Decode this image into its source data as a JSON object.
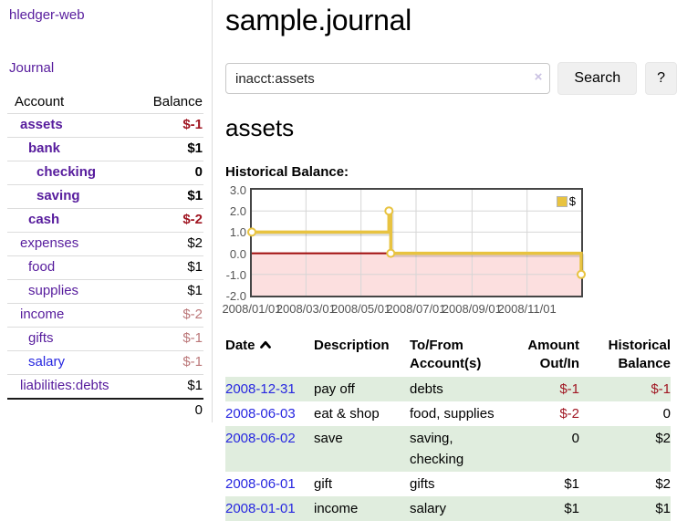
{
  "sidebar": {
    "brand": "hledger-web",
    "journal_label": "Journal",
    "accounts_table": {
      "headers": {
        "account": "Account",
        "balance": "Balance"
      },
      "rows": [
        {
          "name": "assets",
          "depth": 1,
          "bold": true,
          "link": "purple",
          "balance": "$-1",
          "balance_class": "neg"
        },
        {
          "name": "bank",
          "depth": 2,
          "bold": true,
          "link": "purple",
          "balance": "$1",
          "balance_class": ""
        },
        {
          "name": "checking",
          "depth": 3,
          "bold": true,
          "link": "purple",
          "balance": "0",
          "balance_class": ""
        },
        {
          "name": "saving",
          "depth": 3,
          "bold": true,
          "link": "purple",
          "balance": "$1",
          "balance_class": ""
        },
        {
          "name": "cash",
          "depth": 2,
          "bold": true,
          "link": "purple",
          "balance": "$-2",
          "balance_class": "neg"
        },
        {
          "name": "expenses",
          "depth": 1,
          "bold": false,
          "link": "purple",
          "balance": "$2",
          "balance_class": ""
        },
        {
          "name": "food",
          "depth": 2,
          "bold": false,
          "link": "purple",
          "balance": "$1",
          "balance_class": ""
        },
        {
          "name": "supplies",
          "depth": 2,
          "bold": false,
          "link": "purple",
          "balance": "$1",
          "balance_class": ""
        },
        {
          "name": "income",
          "depth": 1,
          "bold": false,
          "link": "purple",
          "balance": "$-2",
          "balance_class": "fneg"
        },
        {
          "name": "gifts",
          "depth": 2,
          "bold": false,
          "link": "purple",
          "balance": "$-1",
          "balance_class": "fneg"
        },
        {
          "name": "salary",
          "depth": 2,
          "bold": false,
          "link": "blue",
          "balance": "$-1",
          "balance_class": "fneg"
        },
        {
          "name": "liabilities:debts",
          "depth": 1,
          "bold": false,
          "link": "purple",
          "balance": "$1",
          "balance_class": ""
        }
      ],
      "total": "0"
    }
  },
  "header": {
    "title": "sample.journal"
  },
  "search": {
    "value": "inacct:assets",
    "clear_icon": "×",
    "button_label": "Search",
    "help_label": "?"
  },
  "account_page": {
    "heading": "assets"
  },
  "chart_data": {
    "type": "line",
    "step": true,
    "title": "Historical Balance:",
    "x_start": "2008-01-01",
    "x_end": "2008-12-31",
    "ylim": [
      -2,
      3
    ],
    "grid": true,
    "legend_position": "top-right",
    "series": [
      {
        "name": "$",
        "points": [
          {
            "date": "2008-01-01",
            "value": 1
          },
          {
            "date": "2008-06-01",
            "value": 2
          },
          {
            "date": "2008-06-03",
            "value": 0
          },
          {
            "date": "2008-12-31",
            "value": -1
          }
        ]
      }
    ],
    "x_ticks": [
      {
        "date": "2008-01-01",
        "label": "2008/01/01"
      },
      {
        "date": "2008-03-01",
        "label": "2008/03/01"
      },
      {
        "date": "2008-05-01",
        "label": "2008/05/01"
      },
      {
        "date": "2008-07-01",
        "label": "2008/07/01"
      },
      {
        "date": "2008-09-01",
        "label": "2008/09/01"
      },
      {
        "date": "2008-11-01",
        "label": "2008/11/01"
      }
    ],
    "y_ticks": [
      {
        "value": 3,
        "label": "3.0"
      },
      {
        "value": 2,
        "label": "2.0"
      },
      {
        "value": 1,
        "label": "1.0"
      },
      {
        "value": 0,
        "label": "0.0"
      },
      {
        "value": -1,
        "label": "-1.0"
      },
      {
        "value": -2,
        "label": "-2.0"
      }
    ],
    "colors": {
      "line": "#e8c340",
      "marker_fill": "#ffffff",
      "negative_region": "#fcdfdf",
      "zero_line": "#a00b0b",
      "grid": "#d6d6d6",
      "border": "#454545"
    }
  },
  "register": {
    "headers": {
      "date": "Date",
      "description": "Description",
      "accounts": "To/From Account(s)",
      "amount": "Amount Out/In",
      "balance": "Historical Balance"
    },
    "rows": [
      {
        "date": "2008-12-31",
        "description": "pay off",
        "accounts": "debts",
        "amount": "$-1",
        "amount_class": "neg",
        "balance": "$-1",
        "balance_class": "neg"
      },
      {
        "date": "2008-06-03",
        "description": "eat & shop",
        "accounts": "food, supplies",
        "amount": "$-2",
        "amount_class": "neg",
        "balance": "0",
        "balance_class": ""
      },
      {
        "date": "2008-06-02",
        "description": "save",
        "accounts": "saving, checking",
        "amount": "0",
        "amount_class": "",
        "balance": "$2",
        "balance_class": ""
      },
      {
        "date": "2008-06-01",
        "description": "gift",
        "accounts": "gifts",
        "amount": "$1",
        "amount_class": "",
        "balance": "$2",
        "balance_class": ""
      },
      {
        "date": "2008-01-01",
        "description": "income",
        "accounts": "salary",
        "amount": "$1",
        "amount_class": "",
        "balance": "$1",
        "balance_class": ""
      }
    ]
  }
}
